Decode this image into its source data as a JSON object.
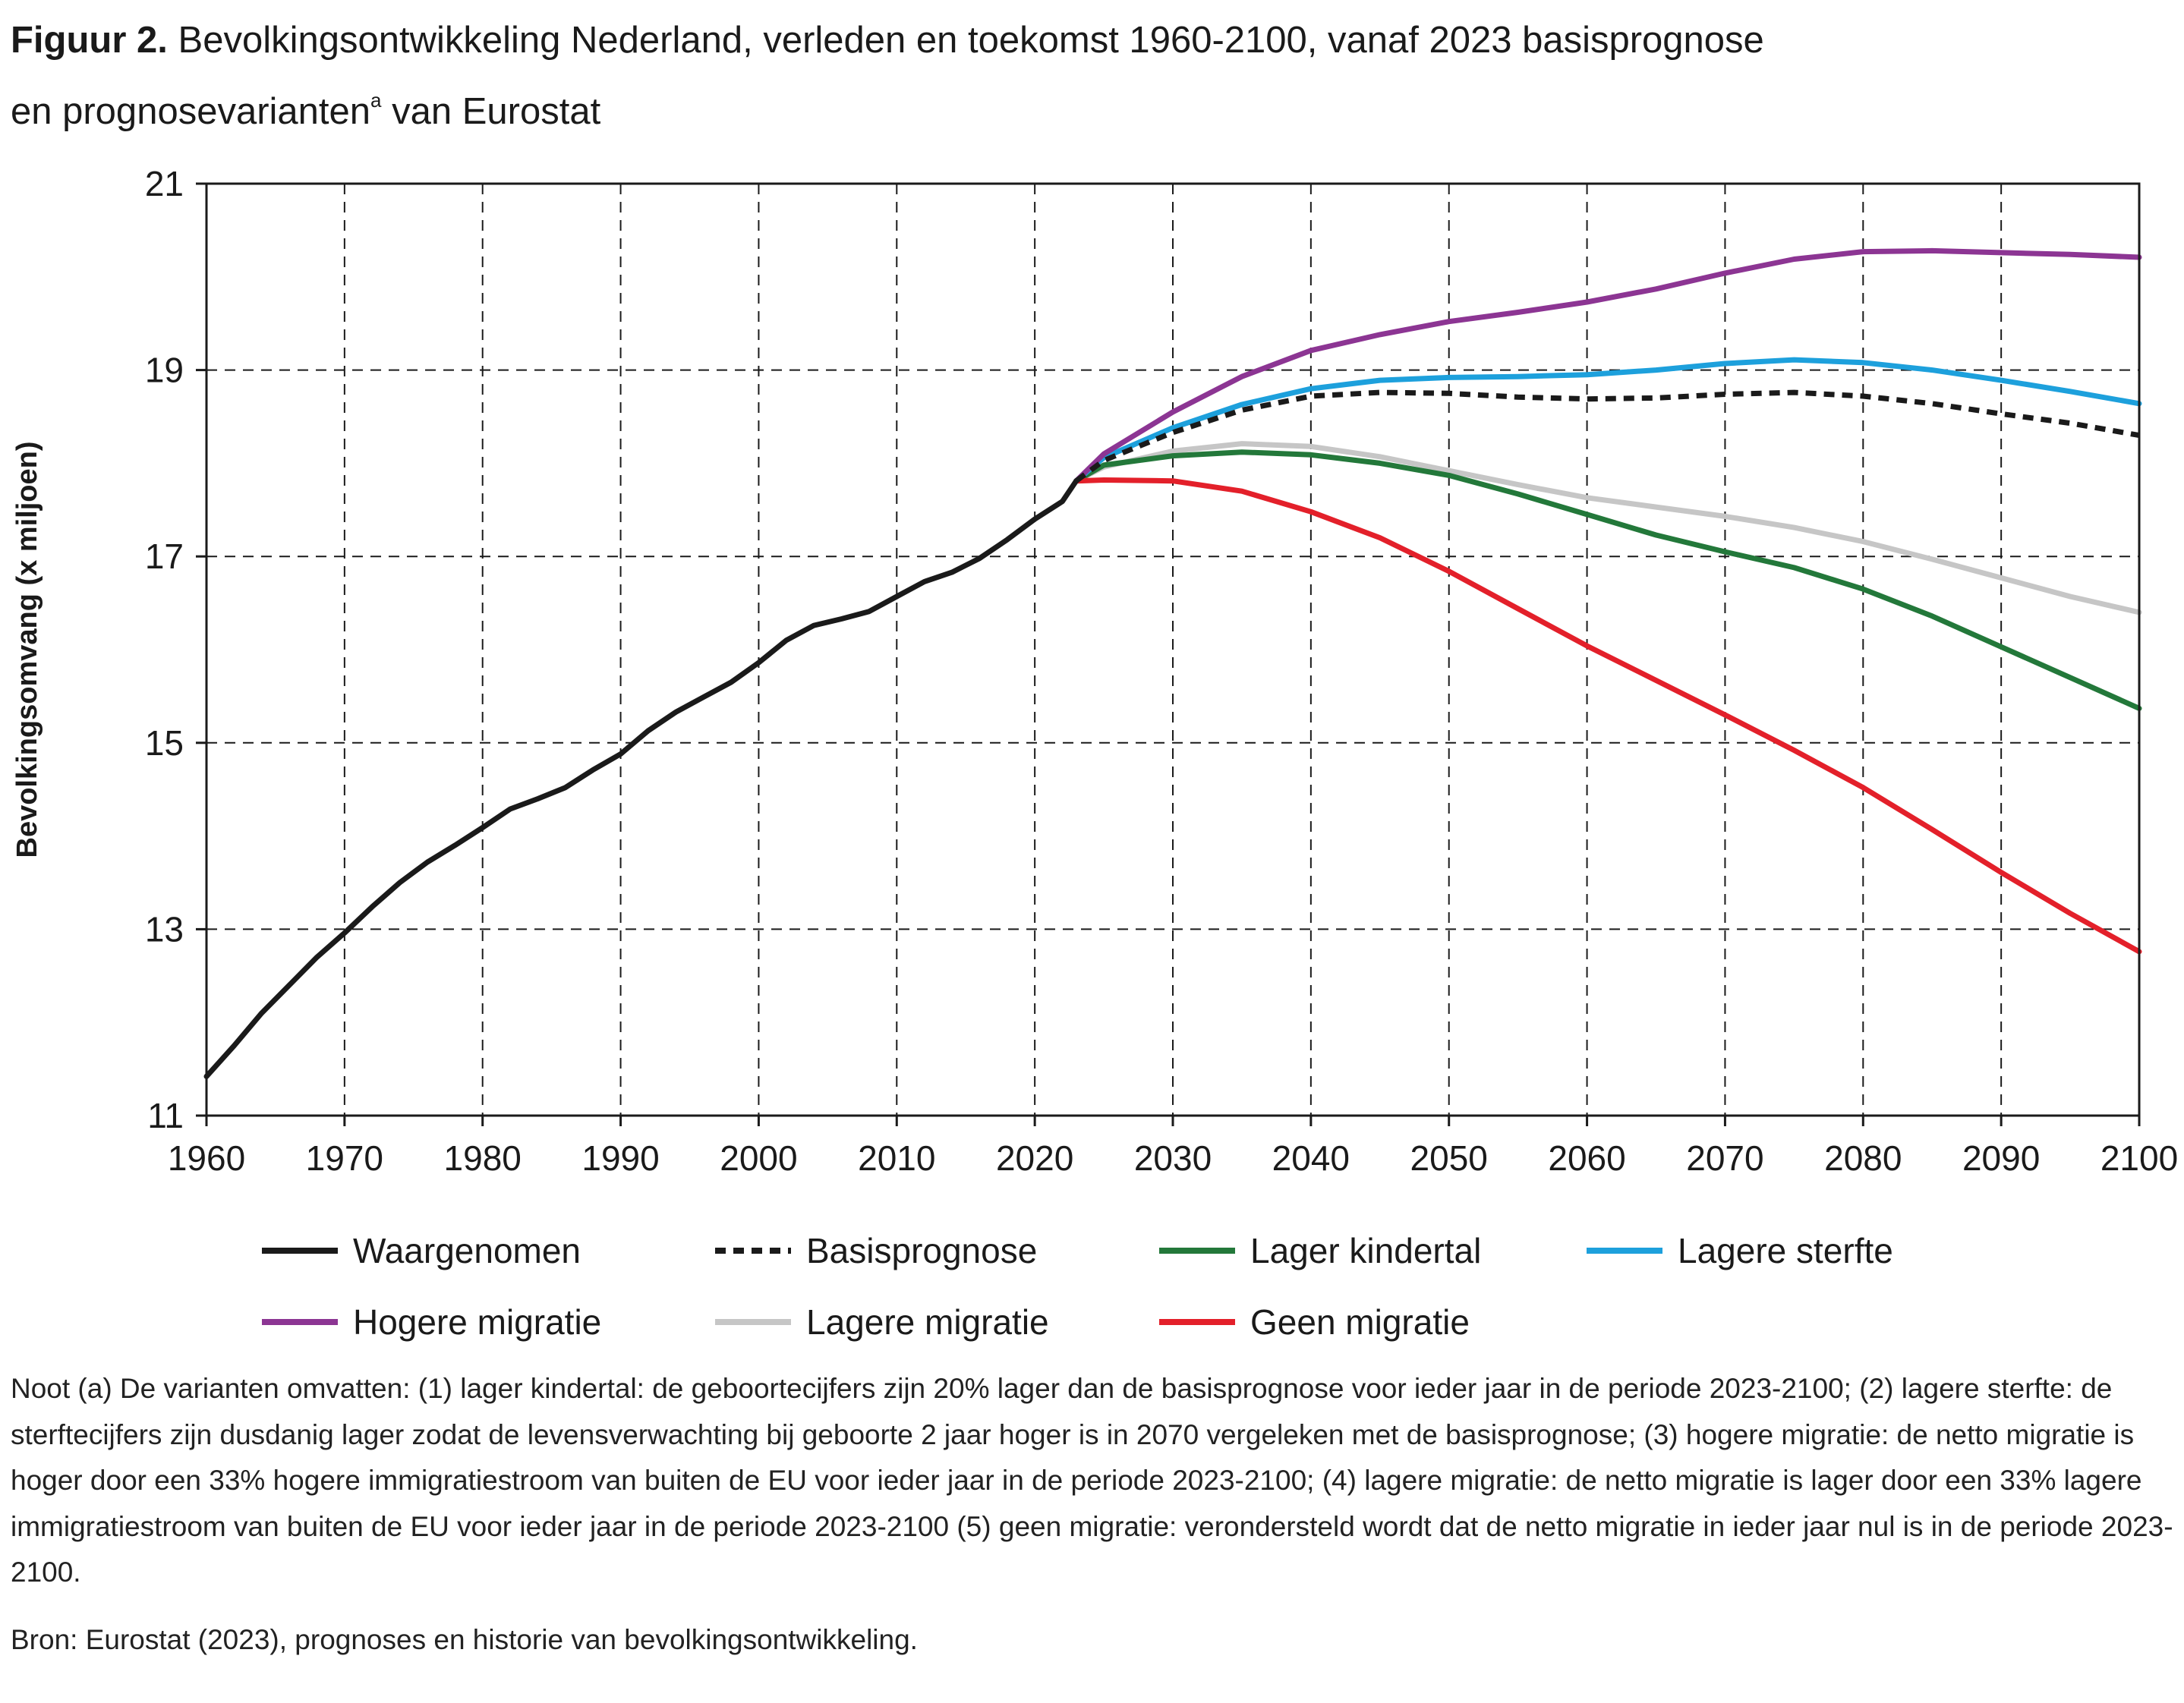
{
  "figure": {
    "label": "Figuur 2.",
    "title_line1": "Bevolkingsontwikkeling Nederland, verleden en toekomst 1960-2100, vanaf 2023 basisprognose",
    "title_line2_pre": "en prognosevarianten",
    "title_sup": "a",
    "title_line2_post": "van Eurostat"
  },
  "notes": {
    "text": "Noot (a) De varianten omvatten: (1) lager kindertal: de geboortecijfers zijn 20% lager dan de basisprognose voor ieder jaar in de periode 2023-2100; (2) lagere sterfte: de sterftecijfers zijn dusdanig lager zodat de levensverwachting bij geboorte 2 jaar hoger is in 2070 vergeleken met de basisprognose; (3) hogere migratie: de netto migratie is hoger door een 33% hogere immigratiestroom van buiten de EU voor ieder jaar in de periode 2023-2100; (4) lagere migratie: de netto migratie is lager door een 33% lagere immigratiestroom van buiten de EU voor ieder jaar in de periode 2023-2100 (5) geen migratie: verondersteld wordt dat de netto migratie in ieder jaar nul is in de periode 2023-2100.",
    "source": "Bron: Eurostat (2023), prognoses en historie van bevolkingsontwikkeling."
  },
  "chart_data": {
    "type": "line",
    "title": "Bevolkingsontwikkeling Nederland, verleden en toekomst 1960-2100, vanaf 2023 basisprognose en prognosevarianten van Eurostat",
    "xlabel": "",
    "ylabel": "Bevolkingsomvang (x miljoen)",
    "xlim": [
      1960,
      2100
    ],
    "ylim": [
      11,
      21
    ],
    "x_ticks": [
      1960,
      1970,
      1980,
      1990,
      2000,
      2010,
      2020,
      2030,
      2040,
      2050,
      2060,
      2070,
      2080,
      2090,
      2100
    ],
    "y_ticks": [
      11,
      13,
      15,
      17,
      19,
      21
    ],
    "grid": "dashed",
    "legend_position": "bottom",
    "series": [
      {
        "name": "Waargenomen",
        "color": "#1a1a1a",
        "dash": "solid",
        "points": [
          [
            1960,
            11.42
          ],
          [
            1962,
            11.75
          ],
          [
            1964,
            12.1
          ],
          [
            1966,
            12.4
          ],
          [
            1968,
            12.7
          ],
          [
            1970,
            12.96
          ],
          [
            1972,
            13.24
          ],
          [
            1974,
            13.5
          ],
          [
            1976,
            13.72
          ],
          [
            1978,
            13.9
          ],
          [
            1980,
            14.09
          ],
          [
            1982,
            14.29
          ],
          [
            1984,
            14.4
          ],
          [
            1986,
            14.52
          ],
          [
            1988,
            14.71
          ],
          [
            1990,
            14.88
          ],
          [
            1992,
            15.13
          ],
          [
            1994,
            15.33
          ],
          [
            1996,
            15.49
          ],
          [
            1998,
            15.65
          ],
          [
            2000,
            15.86
          ],
          [
            2002,
            16.1
          ],
          [
            2004,
            16.26
          ],
          [
            2006,
            16.33
          ],
          [
            2008,
            16.41
          ],
          [
            2010,
            16.57
          ],
          [
            2012,
            16.73
          ],
          [
            2014,
            16.83
          ],
          [
            2016,
            16.98
          ],
          [
            2018,
            17.18
          ],
          [
            2020,
            17.4
          ],
          [
            2022,
            17.59
          ],
          [
            2023,
            17.81
          ]
        ]
      },
      {
        "name": "Basisprognose",
        "color": "#1a1a1a",
        "dash": "dashed",
        "points": [
          [
            2023,
            17.81
          ],
          [
            2025,
            18.03
          ],
          [
            2030,
            18.33
          ],
          [
            2035,
            18.57
          ],
          [
            2040,
            18.72
          ],
          [
            2045,
            18.76
          ],
          [
            2050,
            18.75
          ],
          [
            2055,
            18.71
          ],
          [
            2060,
            18.69
          ],
          [
            2065,
            18.7
          ],
          [
            2070,
            18.74
          ],
          [
            2075,
            18.76
          ],
          [
            2080,
            18.72
          ],
          [
            2085,
            18.64
          ],
          [
            2090,
            18.53
          ],
          [
            2095,
            18.43
          ],
          [
            2100,
            18.3
          ]
        ]
      },
      {
        "name": "Lager kindertal",
        "color": "#23783a",
        "dash": "solid",
        "points": [
          [
            2023,
            17.81
          ],
          [
            2025,
            17.98
          ],
          [
            2030,
            18.08
          ],
          [
            2035,
            18.12
          ],
          [
            2040,
            18.09
          ],
          [
            2045,
            18.0
          ],
          [
            2050,
            17.87
          ],
          [
            2055,
            17.67
          ],
          [
            2060,
            17.45
          ],
          [
            2065,
            17.23
          ],
          [
            2070,
            17.05
          ],
          [
            2075,
            16.88
          ],
          [
            2080,
            16.65
          ],
          [
            2085,
            16.36
          ],
          [
            2090,
            16.03
          ],
          [
            2095,
            15.7
          ],
          [
            2100,
            15.37
          ]
        ]
      },
      {
        "name": "Lagere sterfte",
        "color": "#1da0dc",
        "dash": "solid",
        "points": [
          [
            2023,
            17.81
          ],
          [
            2025,
            18.06
          ],
          [
            2030,
            18.38
          ],
          [
            2035,
            18.63
          ],
          [
            2040,
            18.8
          ],
          [
            2045,
            18.89
          ],
          [
            2050,
            18.92
          ],
          [
            2055,
            18.93
          ],
          [
            2060,
            18.95
          ],
          [
            2065,
            19.0
          ],
          [
            2070,
            19.07
          ],
          [
            2075,
            19.11
          ],
          [
            2080,
            19.08
          ],
          [
            2085,
            19.0
          ],
          [
            2090,
            18.89
          ],
          [
            2095,
            18.77
          ],
          [
            2100,
            18.64
          ]
        ]
      },
      {
        "name": "Hogere migratie",
        "color": "#8c3593",
        "dash": "solid",
        "points": [
          [
            2023,
            17.81
          ],
          [
            2025,
            18.1
          ],
          [
            2030,
            18.55
          ],
          [
            2035,
            18.93
          ],
          [
            2040,
            19.21
          ],
          [
            2045,
            19.38
          ],
          [
            2050,
            19.52
          ],
          [
            2055,
            19.62
          ],
          [
            2060,
            19.73
          ],
          [
            2065,
            19.87
          ],
          [
            2070,
            20.04
          ],
          [
            2075,
            20.19
          ],
          [
            2080,
            20.27
          ],
          [
            2085,
            20.28
          ],
          [
            2090,
            20.26
          ],
          [
            2095,
            20.24
          ],
          [
            2100,
            20.21
          ]
        ]
      },
      {
        "name": "Lagere migratie",
        "color": "#c6c6c6",
        "dash": "solid",
        "points": [
          [
            2023,
            17.81
          ],
          [
            2025,
            17.96
          ],
          [
            2030,
            18.13
          ],
          [
            2035,
            18.21
          ],
          [
            2040,
            18.18
          ],
          [
            2045,
            18.07
          ],
          [
            2050,
            17.92
          ],
          [
            2055,
            17.77
          ],
          [
            2060,
            17.63
          ],
          [
            2065,
            17.53
          ],
          [
            2070,
            17.43
          ],
          [
            2075,
            17.31
          ],
          [
            2080,
            17.16
          ],
          [
            2085,
            16.97
          ],
          [
            2090,
            16.77
          ],
          [
            2095,
            16.57
          ],
          [
            2100,
            16.4
          ]
        ]
      },
      {
        "name": "Geen migratie",
        "color": "#e3202a",
        "dash": "solid",
        "points": [
          [
            2023,
            17.81
          ],
          [
            2025,
            17.82
          ],
          [
            2030,
            17.81
          ],
          [
            2035,
            17.7
          ],
          [
            2040,
            17.48
          ],
          [
            2045,
            17.2
          ],
          [
            2050,
            16.84
          ],
          [
            2055,
            16.44
          ],
          [
            2060,
            16.04
          ],
          [
            2065,
            15.67
          ],
          [
            2070,
            15.3
          ],
          [
            2075,
            14.92
          ],
          [
            2080,
            14.52
          ],
          [
            2085,
            14.07
          ],
          [
            2090,
            13.61
          ],
          [
            2095,
            13.17
          ],
          [
            2100,
            12.76
          ]
        ]
      }
    ]
  }
}
